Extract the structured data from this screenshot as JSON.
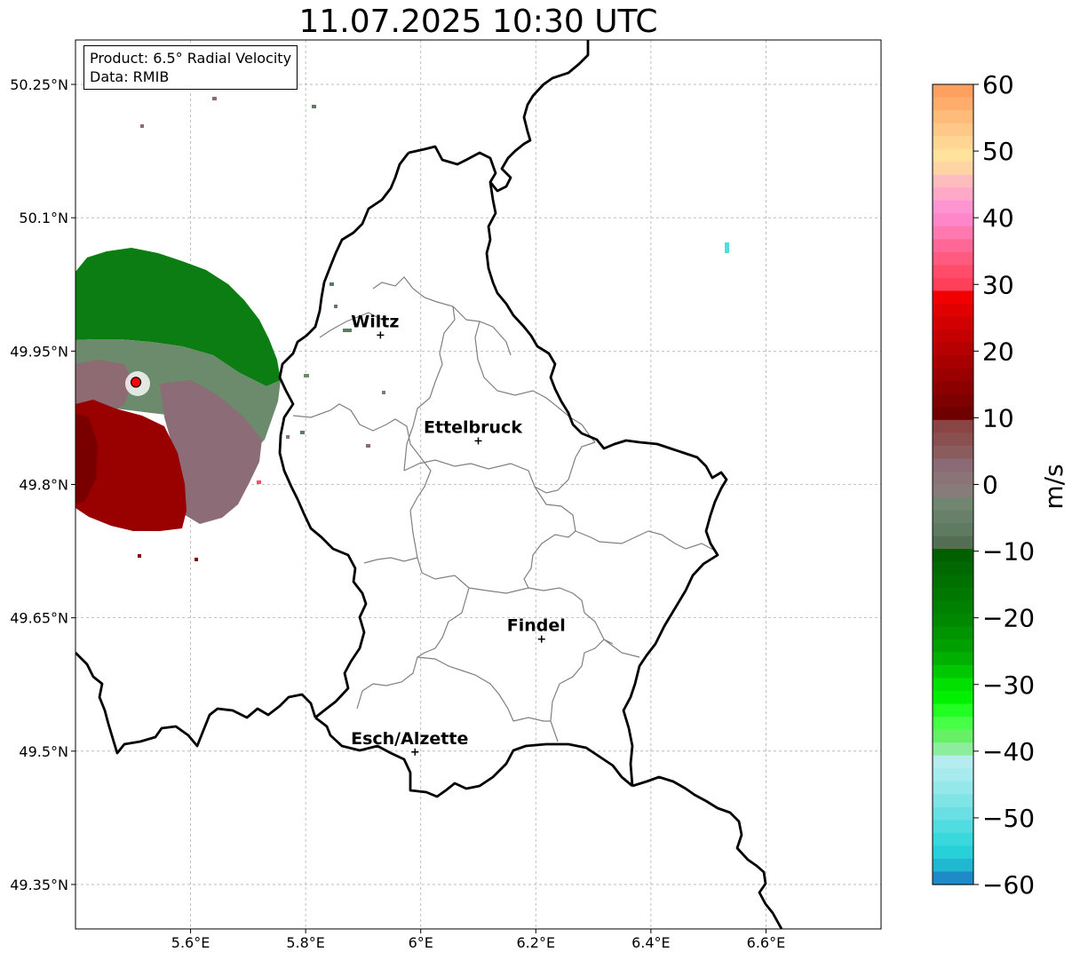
{
  "title": "11.07.2025 10:30 UTC",
  "info_box": {
    "product": "Product: 6.5° Radial Velocity",
    "source": "Data: RMIB"
  },
  "map": {
    "lon_range": [
      5.4,
      6.8
    ],
    "lat_range": [
      49.3,
      50.3
    ],
    "lon_ticks": [
      {
        "value": 5.6,
        "label": "5.6°E"
      },
      {
        "value": 5.8,
        "label": "5.8°E"
      },
      {
        "value": 6.0,
        "label": "6°E"
      },
      {
        "value": 6.2,
        "label": "6.2°E"
      },
      {
        "value": 6.4,
        "label": "6.4°E"
      },
      {
        "value": 6.6,
        "label": "6.6°E"
      }
    ],
    "lat_ticks": [
      {
        "value": 50.25,
        "label": "50.25°N"
      },
      {
        "value": 50.1,
        "label": "50.1°N"
      },
      {
        "value": 49.95,
        "label": "49.95°N"
      },
      {
        "value": 49.8,
        "label": "49.8°N"
      },
      {
        "value": 49.65,
        "label": "49.65°N"
      },
      {
        "value": 49.5,
        "label": "49.5°N"
      },
      {
        "value": 49.35,
        "label": "49.35°N"
      }
    ],
    "grid": true,
    "cities": [
      {
        "name": "Wiltz",
        "lon": 5.93,
        "lat": 49.968
      },
      {
        "name": "Ettelbruck",
        "lon": 6.1,
        "lat": 49.849
      },
      {
        "name": "Findel",
        "lon": 6.21,
        "lat": 49.626
      },
      {
        "name": "Esch/Alzette",
        "lon": 5.99,
        "lat": 49.499
      }
    ],
    "radar_site": {
      "lon": 5.505,
      "lat": 49.915,
      "color": "#ff0000"
    }
  },
  "colorbar": {
    "label": "m/s",
    "min": -60,
    "max": 60,
    "ticks": [
      60,
      50,
      40,
      30,
      20,
      10,
      0,
      -10,
      -20,
      -30,
      -40,
      -50,
      -60
    ],
    "tick_labels": [
      "60",
      "50",
      "40",
      "30",
      "20",
      "10",
      "0",
      "−10",
      "−20",
      "−30",
      "−40",
      "−50",
      "−60"
    ],
    "colors_top_to_bottom": [
      "#ffa060",
      "#ffac6c",
      "#ffbb7a",
      "#ffc888",
      "#ffd694",
      "#ffe39c",
      "#ffd4a4",
      "#ffbcbc",
      "#ffa8c8",
      "#ff94d2",
      "#ff86c8",
      "#ff78b0",
      "#ff6896",
      "#ff5a80",
      "#ff4c6a",
      "#ff4058",
      "#f00000",
      "#e00000",
      "#d20000",
      "#c40000",
      "#b60000",
      "#a80000",
      "#9a0000",
      "#8c0000",
      "#7e0000",
      "#700000",
      "#8a4444",
      "#8a5050",
      "#8a5c5c",
      "#8a6a74",
      "#8a7478",
      "#887c7a",
      "#708670",
      "#68806a",
      "#5e7a60",
      "#546e54",
      "#006000",
      "#006800",
      "#007000",
      "#007800",
      "#008000",
      "#008800",
      "#009400",
      "#00a000",
      "#00b000",
      "#00c800",
      "#00e000",
      "#00f000",
      "#22ff22",
      "#48ff48",
      "#66f066",
      "#8cee9c",
      "#b4ecf0",
      "#a6ecee",
      "#94e8ea",
      "#80e4e6",
      "#6ae0e4",
      "#50dce0",
      "#38d8dc",
      "#28d0da",
      "#20b8d0",
      "#1f8ac8"
    ]
  }
}
